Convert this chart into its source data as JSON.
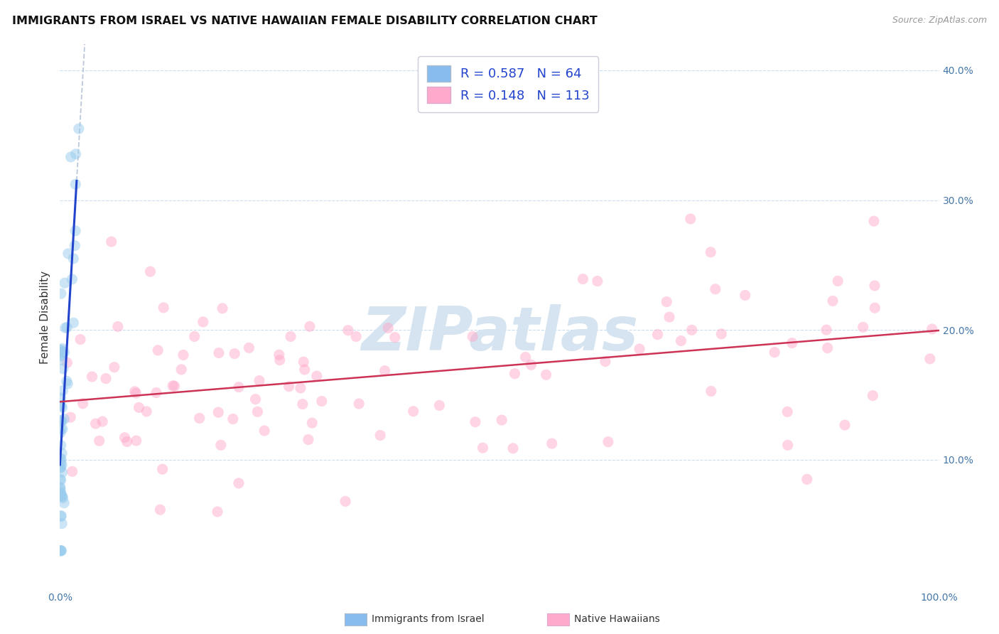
{
  "title": "IMMIGRANTS FROM ISRAEL VS NATIVE HAWAIIAN FEMALE DISABILITY CORRELATION CHART",
  "source": "Source: ZipAtlas.com",
  "ylabel": "Female Disability",
  "xlim": [
    0,
    1.0
  ],
  "ylim": [
    0,
    0.42
  ],
  "xtick_vals": [
    0.0,
    0.1,
    0.2,
    0.3,
    0.4,
    0.5,
    0.6,
    0.7,
    0.8,
    0.9,
    1.0
  ],
  "xticklabels": [
    "0.0%",
    "",
    "",
    "",
    "",
    "",
    "",
    "",
    "",
    "",
    "100.0%"
  ],
  "ytick_vals": [
    0.0,
    0.1,
    0.2,
    0.3,
    0.4
  ],
  "yticklabels_right": [
    "",
    "10.0%",
    "20.0%",
    "30.0%",
    "40.0%"
  ],
  "legend_label1": "R = 0.587   N = 64",
  "legend_label2": "R = 0.148   N = 113",
  "legend_color1": "#88bbee",
  "legend_color2": "#ffaacc",
  "scatter_color1": "#99ccee",
  "scatter_color2": "#ffaacc",
  "line_color1": "#2244cc",
  "line_color2": "#cc3355",
  "trendline_color": "#aabbd0",
  "watermark_text": "ZIPatlas",
  "watermark_color": "#d5e4f0",
  "background_color": "#ffffff",
  "grid_color": "#ccddee",
  "title_fontsize": 11.5,
  "source_fontsize": 9,
  "legend_fontsize": 13,
  "axis_label_fontsize": 11,
  "tick_fontsize": 10,
  "scatter_size": 120,
  "scatter_alpha": 0.5
}
